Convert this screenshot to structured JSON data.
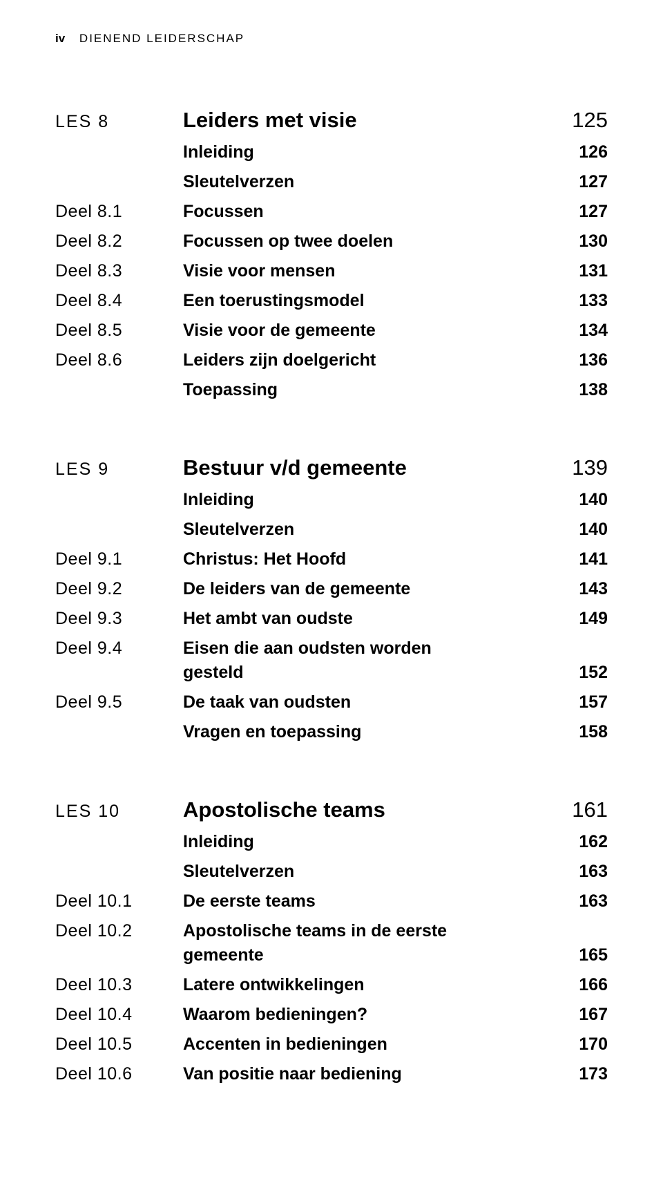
{
  "header": {
    "page_roman": "iv",
    "book_title": "DIENEND LEIDERSCHAP"
  },
  "sections": [
    {
      "les_label": "LES 8",
      "title": "Leiders met visie",
      "page": "125",
      "rows": [
        {
          "label": "",
          "title": "Inleiding",
          "page": "126"
        },
        {
          "label": "",
          "title": "Sleutelverzen",
          "page": "127"
        },
        {
          "label": "Deel 8.1",
          "title": "Focussen",
          "page": "127"
        },
        {
          "label": "Deel 8.2",
          "title": "Focussen op twee doelen",
          "page": "130"
        },
        {
          "label": "Deel 8.3",
          "title": "Visie voor mensen",
          "page": "131"
        },
        {
          "label": "Deel 8.4",
          "title": "Een toerustingsmodel",
          "page": "133"
        },
        {
          "label": "Deel 8.5",
          "title": "Visie voor de gemeente",
          "page": "134"
        },
        {
          "label": "Deel 8.6",
          "title": "Leiders zijn doelgericht",
          "page": "136"
        },
        {
          "label": "",
          "title": "Toepassing",
          "page": "138"
        }
      ]
    },
    {
      "les_label": "LES 9",
      "title": "Bestuur v/d gemeente",
      "page": "139",
      "rows": [
        {
          "label": "",
          "title": "Inleiding",
          "page": "140"
        },
        {
          "label": "",
          "title": "Sleutelverzen",
          "page": "140"
        },
        {
          "label": "Deel 9.1",
          "title": "Christus: Het Hoofd",
          "page": "141"
        },
        {
          "label": "Deel 9.2",
          "title": "De leiders van de gemeente",
          "page": "143"
        },
        {
          "label": "Deel 9.3",
          "title": "Het ambt van oudste",
          "page": "149"
        },
        {
          "label": "Deel 9.4",
          "title": "Eisen die aan oudsten worden",
          "title2": "gesteld",
          "page": "152"
        },
        {
          "label": "Deel 9.5",
          "title": "De taak van oudsten",
          "page": "157"
        },
        {
          "label": "",
          "title": "Vragen en toepassing",
          "page": "158"
        }
      ]
    },
    {
      "les_label": "LES 10",
      "title": "Apostolische teams",
      "page": "161",
      "rows": [
        {
          "label": "",
          "title": "Inleiding",
          "page": "162"
        },
        {
          "label": "",
          "title": "Sleutelverzen",
          "page": "163"
        },
        {
          "label": "Deel 10.1",
          "title": "De eerste teams",
          "page": "163"
        },
        {
          "label": "Deel 10.2",
          "title": "Apostolische teams in de eerste",
          "title2": "gemeente",
          "page": "165"
        },
        {
          "label": "Deel 10.3",
          "title": "Latere ontwikkelingen",
          "page": "166"
        },
        {
          "label": "Deel 10.4",
          "title": "Waarom bedieningen?",
          "page": "167"
        },
        {
          "label": "Deel 10.5",
          "title": "Accenten in bedieningen",
          "page": "170"
        },
        {
          "label": "Deel 10.6",
          "title": "Van positie naar bediening",
          "page": "173"
        }
      ]
    }
  ]
}
